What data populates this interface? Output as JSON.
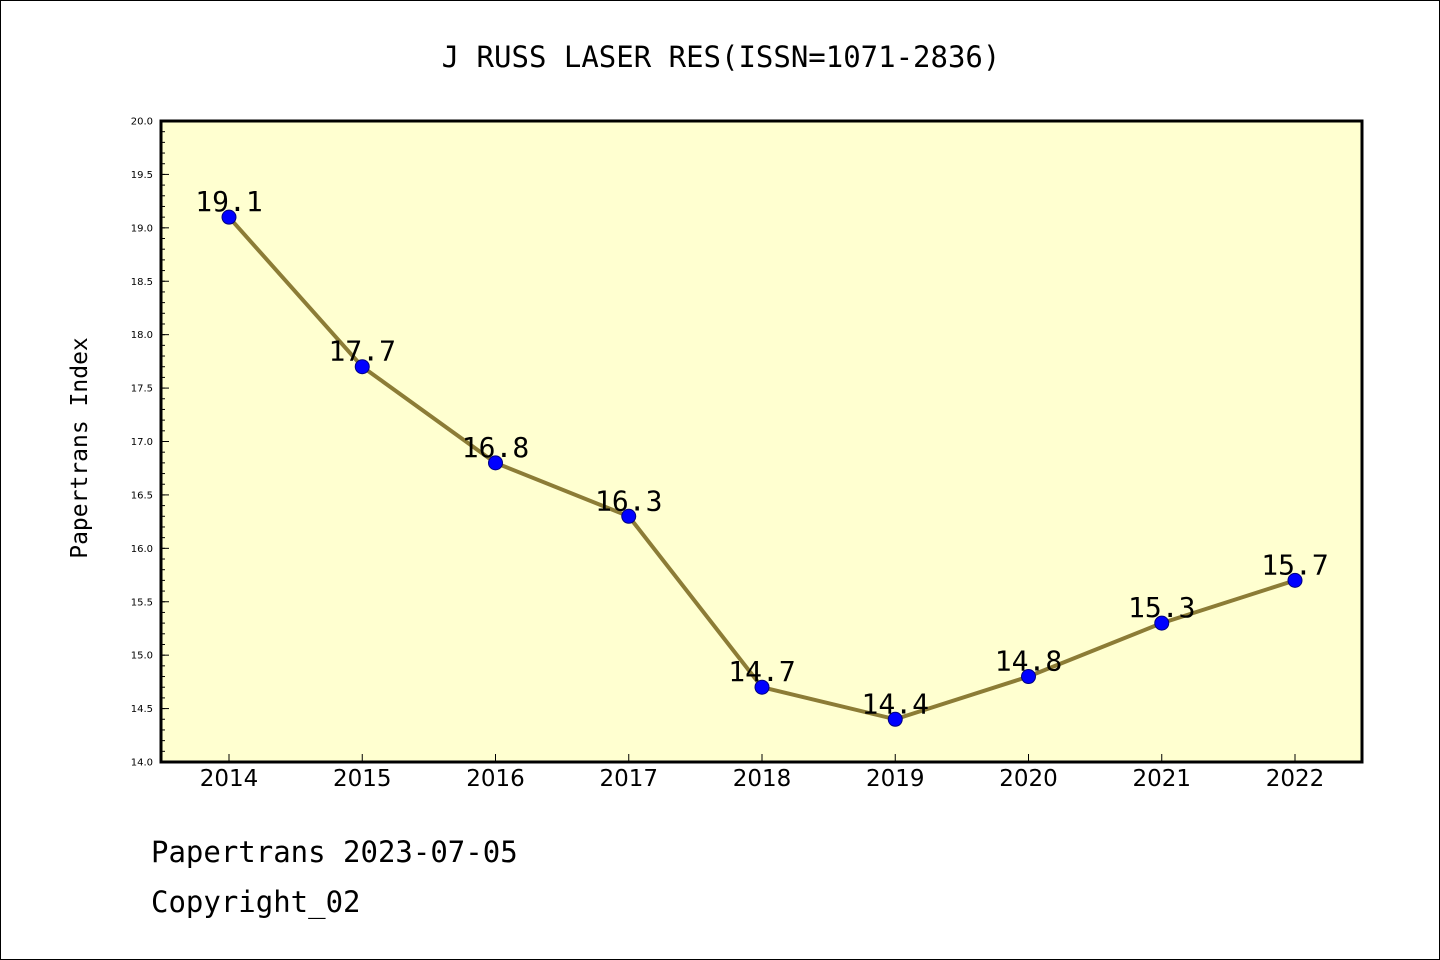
{
  "chart_data": {
    "type": "line",
    "title": "J RUSS LASER RES(ISSN=1071-2836)",
    "xlabel": "",
    "ylabel": "Papertrans Index",
    "categories": [
      "2014",
      "2015",
      "2016",
      "2017",
      "2018",
      "2019",
      "2020",
      "2021",
      "2022"
    ],
    "values": [
      19.1,
      17.7,
      16.8,
      16.3,
      14.7,
      14.4,
      14.8,
      15.3,
      15.7
    ],
    "data_labels": [
      "19.1",
      "17.7",
      "16.8",
      "16.3",
      "14.7",
      "14.4",
      "14.8",
      "15.3",
      "15.7"
    ],
    "ylim": [
      14.0,
      20.0
    ],
    "yticks": [
      "14.0",
      "14.5",
      "15.0",
      "15.5",
      "16.0",
      "16.5",
      "17.0",
      "17.5",
      "18.0",
      "18.5",
      "19.0",
      "19.5",
      "20.0"
    ],
    "grid": false,
    "legend": "none",
    "colors": {
      "plot_background": "#ffffd0",
      "line": "#8c7c36",
      "marker": "#0000ff",
      "marker_edge": "#000080"
    }
  },
  "footer": {
    "date_line": "Papertrans 2023-07-05",
    "copyright": "Copyright_02"
  }
}
